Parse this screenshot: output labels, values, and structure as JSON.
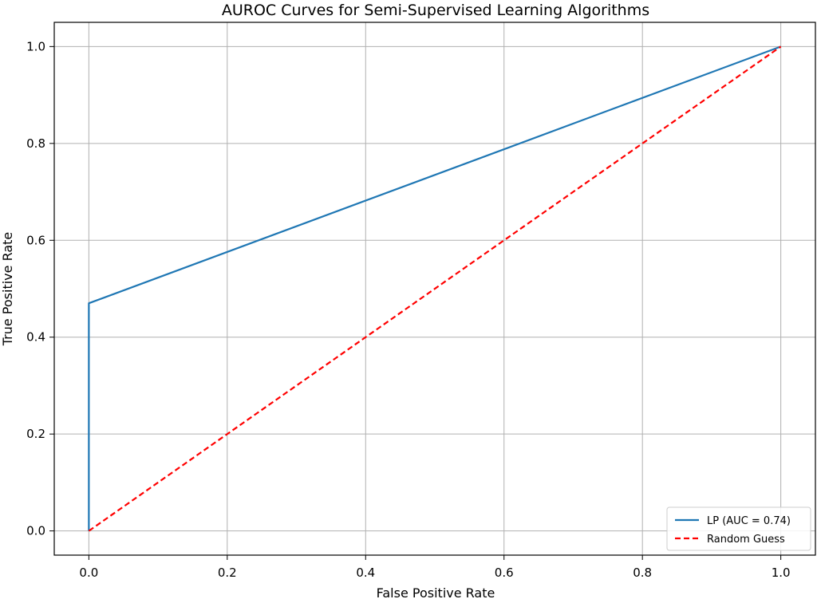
{
  "chart_data": {
    "type": "line",
    "title": "AUROC Curves for Semi-Supervised Learning Algorithms",
    "xlabel": "False Positive Rate",
    "ylabel": "True Positive Rate",
    "xlim": [
      -0.05,
      1.05
    ],
    "ylim": [
      -0.05,
      1.05
    ],
    "xticks": [
      0.0,
      0.2,
      0.4,
      0.6,
      0.8,
      1.0
    ],
    "yticks": [
      0.0,
      0.2,
      0.4,
      0.6,
      0.8,
      1.0
    ],
    "xtick_labels": [
      "0.0",
      "0.2",
      "0.4",
      "0.6",
      "0.8",
      "1.0"
    ],
    "ytick_labels": [
      "0.0",
      "0.2",
      "0.4",
      "0.6",
      "0.8",
      "1.0"
    ],
    "grid": true,
    "legend_position": "lower-right",
    "series": [
      {
        "name": "LP (AUC = 0.74)",
        "color": "#1f77b4",
        "style": "solid",
        "x": [
          0.0,
          0.0,
          1.0
        ],
        "y": [
          0.0,
          0.47,
          1.0
        ]
      },
      {
        "name": "Random Guess",
        "color": "#ff0000",
        "style": "dashed",
        "x": [
          0.0,
          1.0
        ],
        "y": [
          0.0,
          1.0
        ]
      }
    ]
  }
}
